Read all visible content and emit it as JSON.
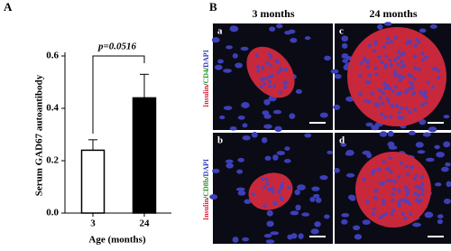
{
  "chart_data": {
    "type": "bar",
    "panel_label": "A",
    "y_label": "Serum GAD67 autoantibody",
    "x_label": "Age (months)",
    "categories": [
      "3",
      "24"
    ],
    "values": [
      0.24,
      0.44
    ],
    "errors": [
      0.04,
      0.09
    ],
    "colors": [
      "#ffffff",
      "#000000"
    ],
    "ylim": [
      0,
      0.6
    ],
    "yticks": [
      {
        "value": 0,
        "label": "0.0"
      },
      0.2,
      0.4,
      0.6
    ],
    "annotation": "p=0.0516"
  },
  "panel_b": {
    "label": "B",
    "columns": [
      "3 months",
      "24 months"
    ],
    "images": [
      "a",
      "c",
      "b",
      "d"
    ],
    "row_labels": [
      [
        "Insulin",
        "/",
        "CD4",
        "/",
        "DAPI"
      ],
      [
        "Insulin",
        "/",
        "CD8b",
        "/",
        "DAPI"
      ]
    ]
  }
}
